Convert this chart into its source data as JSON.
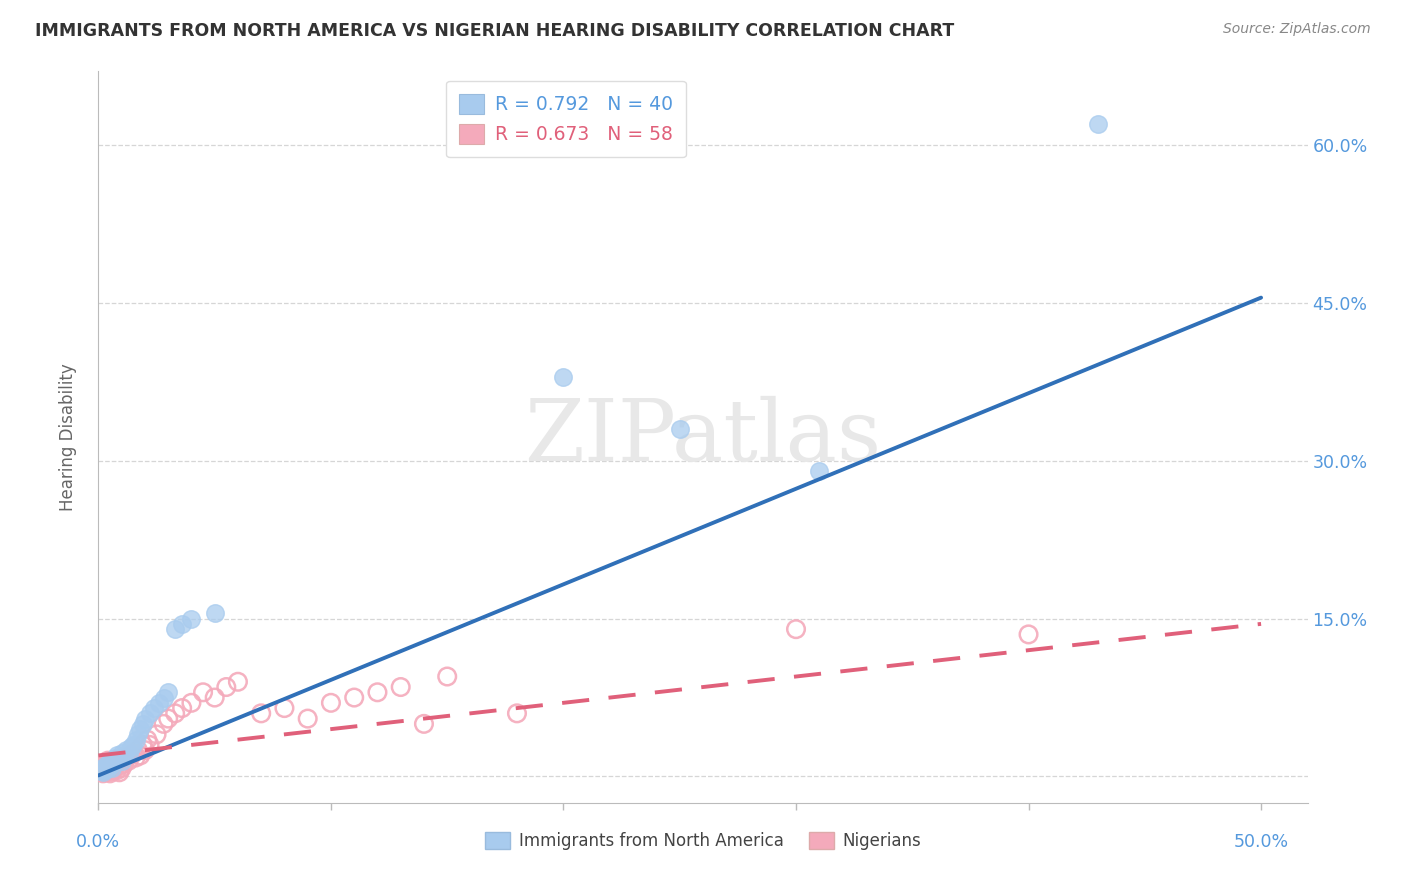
{
  "title": "IMMIGRANTS FROM NORTH AMERICA VS NIGERIAN HEARING DISABILITY CORRELATION CHART",
  "source": "Source: ZipAtlas.com",
  "ylabel": "Hearing Disability",
  "y_ticks": [
    0.0,
    0.15,
    0.3,
    0.45,
    0.6
  ],
  "y_tick_labels": [
    "",
    "15.0%",
    "30.0%",
    "45.0%",
    "60.0%"
  ],
  "x_range": [
    0.0,
    0.52
  ],
  "y_range": [
    -0.025,
    0.67
  ],
  "blue_R": "0.792",
  "blue_N": "40",
  "pink_R": "0.673",
  "pink_N": "58",
  "blue_scatter_color": "#A8CBEE",
  "pink_scatter_color": "#F4AABB",
  "blue_line_color": "#3070B8",
  "pink_line_color": "#E0607A",
  "blue_line_x": [
    0.0,
    0.5
  ],
  "blue_line_y": [
    0.001,
    0.455
  ],
  "pink_line_x": [
    0.0,
    0.5
  ],
  "pink_line_y": [
    0.02,
    0.145
  ],
  "watermark_text": "ZIPatlas",
  "legend_label_blue": "Immigrants from North America",
  "legend_label_pink": "Nigerians",
  "background_color": "#FFFFFF",
  "grid_color": "#CCCCCC",
  "title_color": "#333333",
  "source_color": "#888888",
  "axis_label_color": "#5599DD",
  "blue_scatter_x": [
    0.001,
    0.002,
    0.002,
    0.003,
    0.003,
    0.004,
    0.004,
    0.005,
    0.005,
    0.006,
    0.006,
    0.007,
    0.007,
    0.008,
    0.009,
    0.01,
    0.01,
    0.011,
    0.012,
    0.013,
    0.014,
    0.015,
    0.016,
    0.017,
    0.018,
    0.019,
    0.02,
    0.022,
    0.024,
    0.026,
    0.028,
    0.03,
    0.033,
    0.036,
    0.04,
    0.05,
    0.2,
    0.25,
    0.31,
    0.43
  ],
  "blue_scatter_y": [
    0.005,
    0.004,
    0.008,
    0.006,
    0.01,
    0.008,
    0.012,
    0.01,
    0.015,
    0.008,
    0.012,
    0.015,
    0.018,
    0.02,
    0.018,
    0.015,
    0.022,
    0.02,
    0.025,
    0.022,
    0.028,
    0.03,
    0.035,
    0.04,
    0.045,
    0.05,
    0.055,
    0.06,
    0.065,
    0.07,
    0.075,
    0.08,
    0.14,
    0.145,
    0.15,
    0.155,
    0.38,
    0.33,
    0.29,
    0.62
  ],
  "pink_scatter_x": [
    0.001,
    0.001,
    0.002,
    0.002,
    0.002,
    0.003,
    0.003,
    0.003,
    0.004,
    0.004,
    0.004,
    0.005,
    0.005,
    0.005,
    0.006,
    0.006,
    0.007,
    0.007,
    0.008,
    0.008,
    0.009,
    0.009,
    0.01,
    0.01,
    0.011,
    0.012,
    0.013,
    0.014,
    0.015,
    0.016,
    0.017,
    0.018,
    0.019,
    0.02,
    0.021,
    0.022,
    0.025,
    0.028,
    0.03,
    0.033,
    0.036,
    0.04,
    0.045,
    0.05,
    0.055,
    0.06,
    0.07,
    0.08,
    0.09,
    0.1,
    0.11,
    0.12,
    0.13,
    0.14,
    0.15,
    0.18,
    0.3,
    0.4
  ],
  "pink_scatter_y": [
    0.005,
    0.008,
    0.003,
    0.006,
    0.01,
    0.004,
    0.007,
    0.012,
    0.005,
    0.008,
    0.015,
    0.003,
    0.007,
    0.012,
    0.005,
    0.01,
    0.008,
    0.015,
    0.006,
    0.012,
    0.004,
    0.01,
    0.008,
    0.015,
    0.012,
    0.018,
    0.015,
    0.02,
    0.022,
    0.018,
    0.025,
    0.02,
    0.03,
    0.025,
    0.035,
    0.03,
    0.04,
    0.05,
    0.055,
    0.06,
    0.065,
    0.07,
    0.08,
    0.075,
    0.085,
    0.09,
    0.06,
    0.065,
    0.055,
    0.07,
    0.075,
    0.08,
    0.085,
    0.05,
    0.095,
    0.06,
    0.14,
    0.135
  ]
}
